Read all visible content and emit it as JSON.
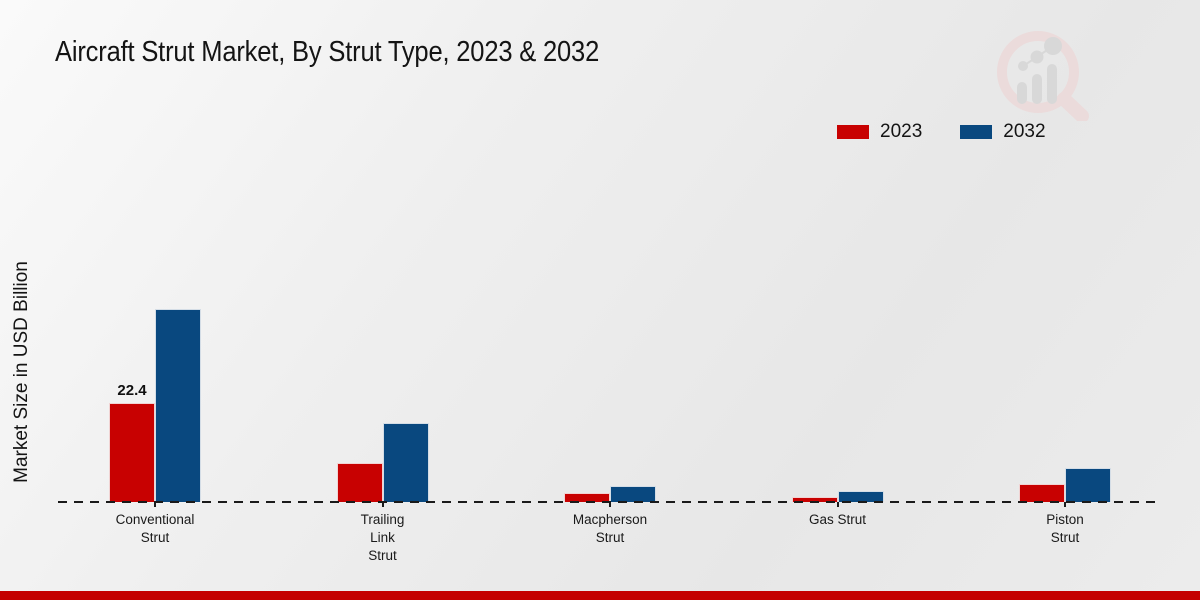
{
  "title": "Aircraft Strut Market, By Strut Type, 2023 & 2032",
  "ylabel": "Market Size in USD Billion",
  "legend": [
    {
      "label": "2023",
      "color": "#c80101"
    },
    {
      "label": "2032",
      "color": "#09487f"
    }
  ],
  "branding": {
    "logo_icon": "magnifier-bar-chart-watermark",
    "bottom_bar_color": "#c40000",
    "logo_ring_color": "#ecd9d9",
    "logo_bar_color": "#d6d6d6"
  },
  "chart_data": {
    "type": "bar",
    "title": "Aircraft Strut Market, By Strut Type, 2023 & 2032",
    "xlabel": "",
    "ylabel": "Market Size in USD Billion",
    "categories": [
      "Conventional Strut",
      "Trailing Link Strut",
      "Macpherson Strut",
      "Gas Strut",
      "Piston Strut"
    ],
    "category_line_breaks": [
      [
        "Conventional",
        "Strut"
      ],
      [
        "Trailing",
        "Link",
        "Strut"
      ],
      [
        "Macpherson",
        "Strut"
      ],
      [
        "Gas Strut"
      ],
      [
        "Piston",
        "Strut"
      ]
    ],
    "series": [
      {
        "name": "2023",
        "color": "#c80101",
        "values": [
          22.4,
          8.9,
          2.1,
          1.2,
          4.1
        ]
      },
      {
        "name": "2032",
        "color": "#09487f",
        "values": [
          43.7,
          17.9,
          3.7,
          2.4,
          7.7
        ]
      }
    ],
    "data_labels": [
      {
        "series_index": 0,
        "category_index": 0,
        "text": "22.4"
      }
    ],
    "ylim": [
      0,
      45
    ],
    "grid": false,
    "baseline_style": "dashed",
    "legend_position": "top-right",
    "y_axis_ticks_visible": false
  }
}
